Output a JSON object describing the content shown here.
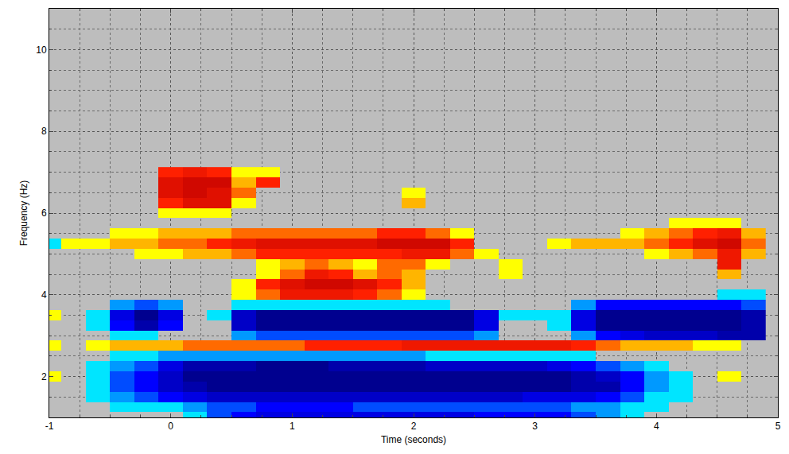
{
  "chart_data": {
    "type": "heatmap",
    "xlabel": "Time (seconds)",
    "ylabel": "Frequency (Hz)",
    "xlim": [
      -1,
      5
    ],
    "ylim": [
      1,
      11
    ],
    "xticks": [
      -1,
      0,
      1,
      2,
      3,
      4,
      5
    ],
    "yticks": [
      2,
      4,
      6,
      8,
      10
    ],
    "grid": true,
    "zlim": [
      -1,
      1
    ],
    "x": [
      -1.0,
      -0.8,
      -0.6,
      -0.4,
      -0.2,
      0.0,
      0.2,
      0.4,
      0.6,
      0.8,
      1.0,
      1.2,
      1.4,
      1.6,
      1.8,
      2.0,
      2.2,
      2.4,
      2.6,
      2.8,
      3.0,
      3.2,
      3.4,
      3.6,
      3.8,
      4.0,
      4.2,
      4.4,
      4.6,
      4.8
    ],
    "y": [
      1.0,
      1.25,
      1.5,
      1.75,
      2.0,
      2.25,
      2.5,
      2.75,
      3.0,
      3.25,
      3.5,
      3.75,
      4.0,
      4.25,
      4.5,
      4.75,
      5.0,
      5.25,
      5.5,
      5.75,
      6.0,
      6.25,
      6.5,
      6.75,
      7.0
    ],
    "z": [
      [
        null,
        null,
        null,
        null,
        null,
        null,
        -0.3,
        -0.5,
        -0.6,
        -0.7,
        -0.7,
        -0.7,
        -0.7,
        -0.7,
        -0.7,
        -0.7,
        -0.7,
        -0.7,
        -0.6,
        -0.6,
        -0.6,
        -0.6,
        -0.5,
        -0.4,
        -0.3,
        null,
        null,
        null,
        null,
        null
      ],
      [
        null,
        null,
        null,
        -0.3,
        -0.3,
        -0.3,
        -0.4,
        -0.5,
        -0.5,
        -0.6,
        -0.6,
        -0.6,
        -0.6,
        -0.5,
        -0.5,
        -0.5,
        -0.5,
        -0.5,
        -0.5,
        -0.5,
        -0.5,
        -0.5,
        -0.4,
        -0.4,
        -0.3,
        -0.3,
        null,
        null,
        null,
        null
      ],
      [
        null,
        null,
        -0.3,
        -0.4,
        -0.5,
        -0.6,
        -0.7,
        -0.8,
        -0.8,
        -0.8,
        -0.8,
        -0.8,
        -0.8,
        -0.8,
        -0.8,
        -0.8,
        -0.8,
        -0.8,
        -0.8,
        -0.8,
        -0.7,
        -0.7,
        -0.7,
        -0.6,
        -0.5,
        -0.3,
        -0.3,
        null,
        null,
        null
      ],
      [
        null,
        null,
        -0.3,
        -0.5,
        -0.6,
        -0.8,
        -0.9,
        -1,
        -1,
        -1,
        -1,
        -1,
        -1,
        -1,
        -1,
        -1,
        -1,
        -1,
        -1,
        -1,
        -1,
        -1,
        -0.9,
        -0.9,
        -0.6,
        -0.4,
        -0.3,
        null,
        null,
        null
      ],
      [
        0.3,
        null,
        -0.3,
        -0.5,
        -0.6,
        -0.8,
        -1,
        -1,
        -1,
        -1,
        -1,
        -1,
        -1,
        -1,
        -1,
        -1,
        -1,
        -1,
        -1,
        -1,
        -1,
        -1,
        -0.9,
        -0.8,
        -0.6,
        -0.4,
        -0.3,
        null,
        0.3,
        null
      ],
      [
        null,
        null,
        -0.3,
        -0.4,
        -0.5,
        -0.7,
        -0.9,
        -0.9,
        -0.9,
        -1,
        -1,
        -1,
        -0.9,
        -0.9,
        -0.9,
        -0.9,
        -0.8,
        -0.8,
        -0.8,
        -0.8,
        -0.8,
        -0.7,
        -0.6,
        -0.5,
        -0.4,
        -0.3,
        null,
        null,
        null,
        null
      ],
      [
        null,
        null,
        null,
        -0.3,
        -0.3,
        -0.4,
        -0.4,
        -0.4,
        -0.4,
        -0.4,
        -0.4,
        -0.4,
        -0.4,
        -0.4,
        -0.4,
        -0.4,
        -0.3,
        -0.3,
        -0.3,
        -0.3,
        -0.3,
        -0.3,
        -0.3,
        null,
        null,
        null,
        null,
        null,
        null,
        null
      ],
      [
        0.3,
        null,
        0.3,
        0.4,
        0.4,
        0.4,
        0.5,
        0.5,
        0.5,
        0.5,
        0.5,
        0.6,
        0.6,
        0.6,
        0.6,
        0.7,
        0.7,
        0.7,
        0.7,
        0.7,
        0.7,
        0.7,
        0.6,
        0.5,
        0.4,
        0.4,
        0.4,
        0.3,
        0.3,
        null
      ],
      [
        null,
        null,
        null,
        -0.3,
        -0.3,
        null,
        null,
        null,
        -0.4,
        -0.5,
        -0.5,
        -0.5,
        -0.5,
        -0.5,
        -0.5,
        -0.5,
        -0.5,
        -0.5,
        -0.4,
        null,
        null,
        null,
        -0.4,
        -0.6,
        -0.7,
        -0.8,
        -0.8,
        -0.8,
        -0.9,
        -0.9
      ],
      [
        null,
        null,
        -0.3,
        -0.6,
        -0.9,
        -0.6,
        null,
        null,
        -0.8,
        -1,
        -1,
        -1,
        -1,
        -1,
        -1,
        -1,
        -1,
        -1,
        -0.7,
        null,
        null,
        -0.3,
        -0.7,
        -1,
        -1,
        -1,
        -1,
        -1,
        -1,
        -0.9
      ],
      [
        0.3,
        null,
        -0.3,
        -0.7,
        -1,
        -0.7,
        null,
        -0.3,
        -0.8,
        -1,
        -1,
        -1,
        -1,
        -1,
        -1,
        -1,
        -1,
        -1,
        -0.7,
        -0.3,
        -0.3,
        -0.3,
        -0.7,
        -1,
        -1,
        -1,
        -1,
        -1,
        -1,
        -0.9
      ],
      [
        null,
        null,
        null,
        -0.4,
        -0.5,
        -0.4,
        null,
        null,
        -0.3,
        -0.3,
        -0.3,
        -0.3,
        -0.3,
        -0.3,
        -0.3,
        -0.3,
        -0.3,
        null,
        null,
        null,
        null,
        null,
        -0.4,
        -0.6,
        -0.6,
        -0.6,
        -0.6,
        -0.6,
        -0.6,
        -0.5
      ],
      [
        null,
        null,
        null,
        null,
        null,
        null,
        null,
        null,
        0.3,
        0.5,
        0.7,
        0.7,
        0.7,
        0.6,
        0.5,
        0.3,
        null,
        null,
        null,
        null,
        null,
        null,
        null,
        null,
        null,
        null,
        null,
        null,
        -0.3,
        -0.3
      ],
      [
        null,
        null,
        null,
        null,
        null,
        null,
        null,
        null,
        0.3,
        0.6,
        0.8,
        0.9,
        0.9,
        0.8,
        0.6,
        0.4,
        null,
        null,
        null,
        null,
        null,
        null,
        null,
        null,
        null,
        null,
        null,
        null,
        null,
        null
      ],
      [
        null,
        null,
        null,
        null,
        null,
        null,
        null,
        null,
        null,
        0.3,
        0.5,
        0.7,
        0.6,
        0.4,
        0.5,
        0.4,
        null,
        null,
        null,
        0.3,
        null,
        null,
        null,
        null,
        null,
        null,
        null,
        null,
        0.4,
        null
      ],
      [
        null,
        null,
        null,
        null,
        null,
        null,
        null,
        null,
        null,
        0.3,
        0.4,
        0.5,
        0.4,
        0.3,
        0.5,
        0.5,
        0.3,
        null,
        null,
        0.3,
        null,
        null,
        null,
        null,
        null,
        null,
        null,
        null,
        0.7,
        null
      ],
      [
        null,
        null,
        null,
        null,
        0.3,
        0.3,
        0.4,
        0.4,
        0.5,
        0.6,
        0.6,
        0.6,
        0.6,
        0.6,
        0.6,
        0.7,
        0.7,
        0.5,
        0.3,
        null,
        null,
        null,
        null,
        null,
        null,
        0.3,
        0.4,
        0.5,
        0.7,
        0.4
      ],
      [
        -0.3,
        0.3,
        0.3,
        0.4,
        0.4,
        0.5,
        0.5,
        0.6,
        0.7,
        0.8,
        0.8,
        0.8,
        0.8,
        0.8,
        0.9,
        0.9,
        0.9,
        0.6,
        null,
        null,
        null,
        0.3,
        0.4,
        0.4,
        0.4,
        0.5,
        0.6,
        0.8,
        0.9,
        0.5
      ],
      [
        null,
        null,
        null,
        0.3,
        0.3,
        0.4,
        0.4,
        0.4,
        0.5,
        0.5,
        0.5,
        0.5,
        0.5,
        0.5,
        0.6,
        0.6,
        0.5,
        0.3,
        null,
        null,
        null,
        null,
        null,
        null,
        0.3,
        0.4,
        0.5,
        0.6,
        0.7,
        0.4
      ],
      [
        null,
        null,
        null,
        null,
        null,
        null,
        null,
        null,
        null,
        null,
        null,
        null,
        null,
        null,
        null,
        null,
        null,
        null,
        null,
        null,
        null,
        null,
        null,
        null,
        null,
        null,
        0.3,
        0.3,
        0.3,
        null
      ],
      [
        null,
        null,
        null,
        null,
        null,
        0.3,
        0.3,
        0.3,
        null,
        null,
        null,
        null,
        null,
        null,
        null,
        null,
        null,
        null,
        null,
        null,
        null,
        null,
        null,
        null,
        null,
        null,
        null,
        null,
        null,
        null
      ],
      [
        null,
        null,
        null,
        null,
        null,
        0.6,
        0.8,
        0.8,
        0.3,
        null,
        null,
        null,
        null,
        null,
        null,
        0.4,
        null,
        null,
        null,
        null,
        null,
        null,
        null,
        null,
        null,
        null,
        null,
        null,
        null,
        null
      ],
      [
        null,
        null,
        null,
        null,
        null,
        0.8,
        0.9,
        0.8,
        0.5,
        null,
        null,
        null,
        null,
        null,
        null,
        0.3,
        null,
        null,
        null,
        null,
        null,
        null,
        null,
        null,
        null,
        null,
        null,
        null,
        null,
        null
      ],
      [
        null,
        null,
        null,
        null,
        null,
        0.8,
        0.9,
        0.9,
        0.4,
        0.6,
        null,
        null,
        null,
        null,
        null,
        null,
        null,
        null,
        null,
        null,
        null,
        null,
        null,
        null,
        null,
        null,
        null,
        null,
        null,
        null
      ],
      [
        null,
        null,
        null,
        null,
        null,
        0.6,
        0.7,
        0.6,
        0.3,
        0.3,
        null,
        null,
        null,
        null,
        null,
        null,
        null,
        null,
        null,
        null,
        null,
        null,
        null,
        null,
        null,
        null,
        null,
        null,
        null,
        null
      ]
    ]
  }
}
